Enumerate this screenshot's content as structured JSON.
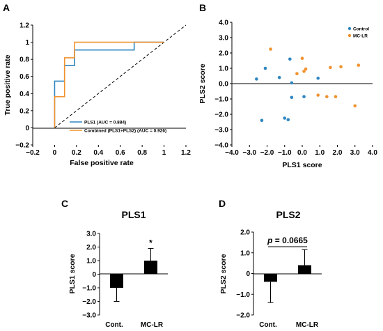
{
  "chart_data": [
    {
      "panel": "A",
      "type": "line",
      "title": "",
      "xlabel": "False positive rate",
      "ylabel": "True positive rate",
      "xlim": [
        -0.2,
        1.2
      ],
      "ylim": [
        -0.2,
        1.2
      ],
      "xticks": [
        "−0.2",
        "0",
        "0.2",
        "0.4",
        "0.6",
        "0.8",
        "1",
        "1.2"
      ],
      "yticks": [
        "−0.2",
        "0",
        "0.2",
        "0.4",
        "0.6",
        "0.8",
        "1",
        "1.2"
      ],
      "diagonal": true,
      "legend_position": "bottom-right",
      "series": [
        {
          "name": "PLS1 (AUC = 0.884)",
          "color": "#2e86c1",
          "points": [
            [
              0,
              0
            ],
            [
              0,
              0.545
            ],
            [
              0.091,
              0.545
            ],
            [
              0.091,
              0.727
            ],
            [
              0.182,
              0.727
            ],
            [
              0.182,
              0.909
            ],
            [
              0.727,
              0.909
            ],
            [
              0.727,
              1
            ],
            [
              1,
              1
            ]
          ]
        },
        {
          "name": "Combined (PLS1+PLS2) (AUC = 0.926)",
          "color": "#f0922e",
          "points": [
            [
              0,
              0
            ],
            [
              0,
              0.364
            ],
            [
              0.091,
              0.364
            ],
            [
              0.091,
              0.818
            ],
            [
              0.182,
              0.818
            ],
            [
              0.182,
              1
            ],
            [
              1,
              1
            ]
          ]
        }
      ]
    },
    {
      "panel": "B",
      "type": "scatter",
      "title": "",
      "xlabel": "PLS1 score",
      "ylabel": "PLS2 score",
      "xlim": [
        -4,
        4
      ],
      "ylim": [
        -4,
        4
      ],
      "xticks": [
        "−4.0",
        "−3.0",
        "−2.0",
        "−1.0",
        "0.0",
        "1.0",
        "2.0",
        "3.0",
        "4.0"
      ],
      "yticks": [
        "−4.0",
        "−3.0",
        "−2.0",
        "−1.0",
        "0.0",
        "1.0",
        "2.0",
        "3.0",
        "4.0"
      ],
      "legend_position": "top-right",
      "series": [
        {
          "name": "Control",
          "color": "#2e86c1",
          "points": [
            [
              -2.6,
              0.3
            ],
            [
              -2.3,
              -2.4
            ],
            [
              -2.1,
              1.0
            ],
            [
              -1.3,
              0.4
            ],
            [
              -1.0,
              -2.25
            ],
            [
              -0.8,
              -2.35
            ],
            [
              -0.7,
              1.6
            ],
            [
              -0.6,
              0.05
            ],
            [
              -0.6,
              -0.9
            ],
            [
              0.1,
              -0.85
            ],
            [
              0.9,
              0.35
            ]
          ]
        },
        {
          "name": "MC-LR",
          "color": "#f0922e",
          "points": [
            [
              -1.8,
              2.25
            ],
            [
              -0.3,
              0.65
            ],
            [
              0.0,
              1.65
            ],
            [
              0.1,
              0.8
            ],
            [
              0.2,
              0.95
            ],
            [
              0.9,
              -0.75
            ],
            [
              1.4,
              -0.85
            ],
            [
              1.6,
              1.05
            ],
            [
              1.9,
              -0.85
            ],
            [
              2.2,
              1.1
            ],
            [
              3.0,
              -1.45
            ],
            [
              3.2,
              1.2
            ]
          ]
        }
      ]
    },
    {
      "panel": "C",
      "type": "bar",
      "title": "PLS1",
      "ylabel": "PLS1 score",
      "categories": [
        "Cont.",
        "MC-LR"
      ],
      "values": [
        -1.0,
        1.0
      ],
      "errors": [
        1.0,
        0.9
      ],
      "ylim": [
        -3,
        3
      ],
      "yticks": [
        "−3.0",
        "−2.0",
        "−1.0",
        "0",
        "1.0",
        "2.0",
        "3.0"
      ],
      "annotation": "*"
    },
    {
      "panel": "D",
      "type": "bar",
      "title": "PLS2",
      "ylabel": "PLS2 score",
      "categories": [
        "Cont.",
        "MC-LR"
      ],
      "values": [
        -0.4,
        0.4
      ],
      "errors": [
        1.0,
        0.75
      ],
      "ylim": [
        -2,
        2
      ],
      "yticks": [
        "−2.0",
        "−1.0",
        "0",
        "1.0",
        "2.0"
      ],
      "annotation_p": "p",
      "annotation_value": " = 0.0665"
    }
  ]
}
